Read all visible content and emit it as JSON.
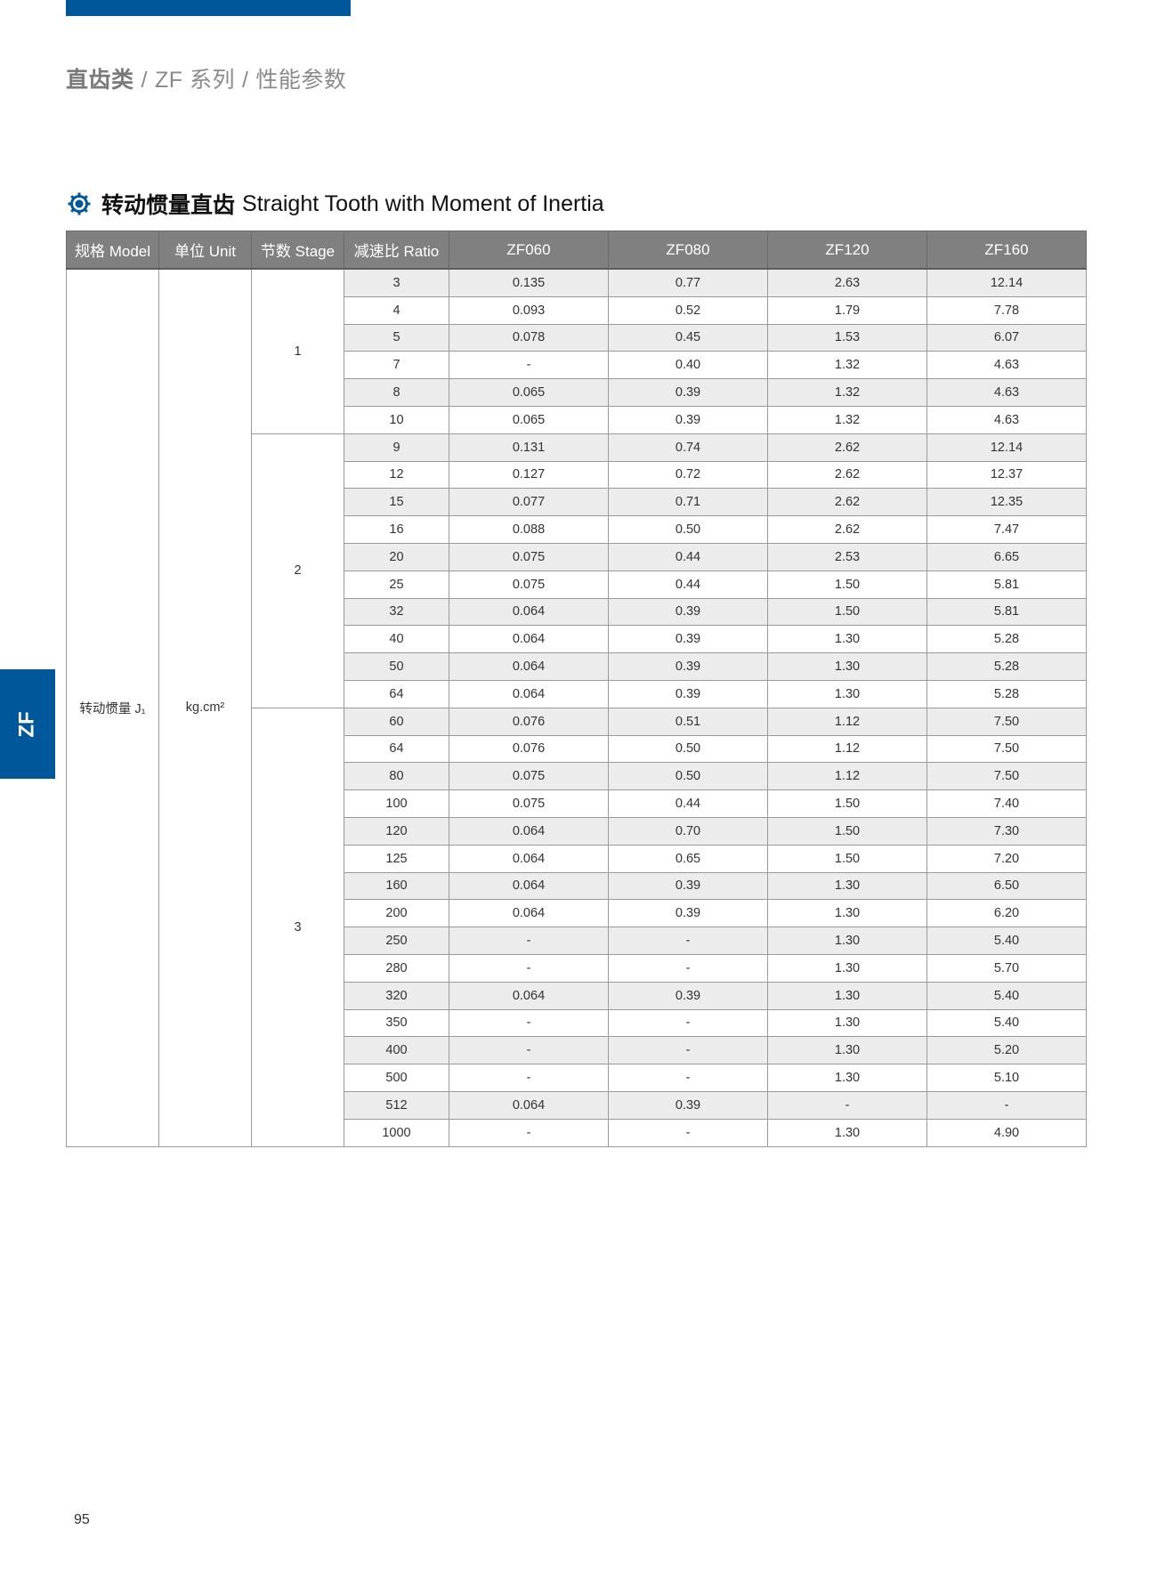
{
  "breadcrumb": {
    "category": "直齿类",
    "series": "ZF 系列",
    "page": "性能参数",
    "separator": "/"
  },
  "section": {
    "title_cn": "转动惯量直齿",
    "title_en": "Straight Tooth with Moment of Inertia",
    "icon": "gear-icon"
  },
  "side_tab": "ZF",
  "colors": {
    "brand_blue": "#00579a",
    "header_gray": "#808080",
    "stripe": "#ececec"
  },
  "table": {
    "headers": [
      "规格 Model",
      "单位 Unit",
      "节数 Stage",
      "减速比 Ratio",
      "ZF060",
      "ZF080",
      "ZF120",
      "ZF160"
    ],
    "model": "转动惯量 J₁",
    "unit": "kg.cm²",
    "stages": [
      {
        "stage": "1",
        "rows": [
          [
            "3",
            "0.135",
            "0.77",
            "2.63",
            "12.14"
          ],
          [
            "4",
            "0.093",
            "0.52",
            "1.79",
            "7.78"
          ],
          [
            "5",
            "0.078",
            "0.45",
            "1.53",
            "6.07"
          ],
          [
            "7",
            "-",
            "0.40",
            "1.32",
            "4.63"
          ],
          [
            "8",
            "0.065",
            "0.39",
            "1.32",
            "4.63"
          ],
          [
            "10",
            "0.065",
            "0.39",
            "1.32",
            "4.63"
          ]
        ]
      },
      {
        "stage": "2",
        "rows": [
          [
            "9",
            "0.131",
            "0.74",
            "2.62",
            "12.14"
          ],
          [
            "12",
            "0.127",
            "0.72",
            "2.62",
            "12.37"
          ],
          [
            "15",
            "0.077",
            "0.71",
            "2.62",
            "12.35"
          ],
          [
            "16",
            "0.088",
            "0.50",
            "2.62",
            "7.47"
          ],
          [
            "20",
            "0.075",
            "0.44",
            "2.53",
            "6.65"
          ],
          [
            "25",
            "0.075",
            "0.44",
            "1.50",
            "5.81"
          ],
          [
            "32",
            "0.064",
            "0.39",
            "1.50",
            "5.81"
          ],
          [
            "40",
            "0.064",
            "0.39",
            "1.30",
            "5.28"
          ],
          [
            "50",
            "0.064",
            "0.39",
            "1.30",
            "5.28"
          ],
          [
            "64",
            "0.064",
            "0.39",
            "1.30",
            "5.28"
          ]
        ]
      },
      {
        "stage": "3",
        "rows": [
          [
            "60",
            "0.076",
            "0.51",
            "1.12",
            "7.50"
          ],
          [
            "64",
            "0.076",
            "0.50",
            "1.12",
            "7.50"
          ],
          [
            "80",
            "0.075",
            "0.50",
            "1.12",
            "7.50"
          ],
          [
            "100",
            "0.075",
            "0.44",
            "1.50",
            "7.40"
          ],
          [
            "120",
            "0.064",
            "0.70",
            "1.50",
            "7.30"
          ],
          [
            "125",
            "0.064",
            "0.65",
            "1.50",
            "7.20"
          ],
          [
            "160",
            "0.064",
            "0.39",
            "1.30",
            "6.50"
          ],
          [
            "200",
            "0.064",
            "0.39",
            "1.30",
            "6.20"
          ],
          [
            "250",
            "-",
            "-",
            "1.30",
            "5.40"
          ],
          [
            "280",
            "-",
            "-",
            "1.30",
            "5.70"
          ],
          [
            "320",
            "0.064",
            "0.39",
            "1.30",
            "5.40"
          ],
          [
            "350",
            "-",
            "-",
            "1.30",
            "5.40"
          ],
          [
            "400",
            "-",
            "-",
            "1.30",
            "5.20"
          ],
          [
            "500",
            "-",
            "-",
            "1.30",
            "5.10"
          ],
          [
            "512",
            "0.064",
            "0.39",
            "-",
            "-"
          ],
          [
            "1000",
            "-",
            "-",
            "1.30",
            "4.90"
          ]
        ]
      }
    ]
  },
  "page_number": "95"
}
